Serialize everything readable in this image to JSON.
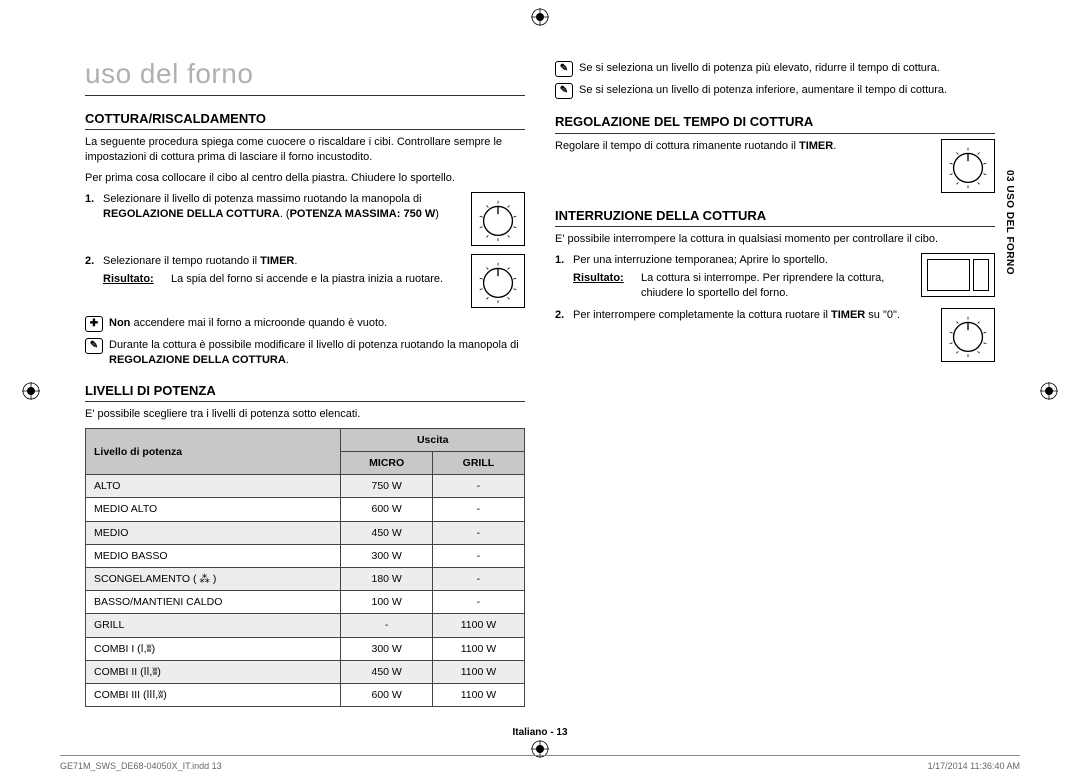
{
  "page": {
    "main_title": "uso del forno",
    "side_tab": "03 USO DEL FORNO",
    "footer_center": "Italiano - 13",
    "footer_left": "GE71M_SWS_DE68-04050X_IT.indd   13",
    "footer_right": "1/17/2014   11:36:40 AM"
  },
  "left": {
    "s1_title": "COTTURA/RISCALDAMENTO",
    "s1_p1": "La seguente procedura spiega come cuocere o riscaldare i cibi. Controllare sempre le impostazioni di cottura prima di lasciare il forno incustodito.",
    "s1_p2": "Per prima cosa collocare il cibo al centro della piastra. Chiudere lo sportello.",
    "s1_step1_a": "Selezionare il livello di potenza massimo ruotando la manopola di ",
    "s1_step1_b": "REGOLAZIONE DELLA COTTURA",
    "s1_step1_c": ". (",
    "s1_step1_d": "POTENZA MASSIMA: 750 W",
    "s1_step1_e": ")",
    "s1_step2_a": "Selezionare il tempo ruotando il ",
    "s1_step2_b": "TIMER",
    "s1_step2_c": ".",
    "s1_result_label": "Risultato:",
    "s1_result_text": "La spia del forno si accende e la piastra inizia a ruotare.",
    "s1_note1_a": "Non",
    "s1_note1_b": " accendere mai il forno a microonde quando è vuoto.",
    "s1_note2_a": "Durante la cottura è possibile modificare il livello di potenza ruotando la manopola di ",
    "s1_note2_b": "REGOLAZIONE DELLA COTTURA",
    "s1_note2_c": ".",
    "s2_title": "LIVELLI DI POTENZA",
    "s2_p1": "E' possibile scegliere tra i livelli di potenza sotto elencati.",
    "tbl": {
      "h1": "Livello di potenza",
      "h2": "Uscita",
      "h2a": "MICRO",
      "h2b": "GRILL",
      "rows": [
        {
          "l": "ALTO",
          "m": "750 W",
          "g": "-"
        },
        {
          "l": "MEDIO ALTO",
          "m": "600 W",
          "g": "-"
        },
        {
          "l": "MEDIO",
          "m": "450 W",
          "g": "-"
        },
        {
          "l": "MEDIO BASSO",
          "m": "300 W",
          "g": "-"
        },
        {
          "l": "SCONGELAMENTO ( ⁂ )",
          "m": "180 W",
          "g": "-"
        },
        {
          "l": "BASSO/MANTIENI CALDO",
          "m": "100 W",
          "g": "-"
        },
        {
          "l": "GRILL",
          "m": "-",
          "g": "1100 W"
        },
        {
          "l": "COMBI I (ⅼ,ʬ)",
          "m": "300 W",
          "g": "1100 W"
        },
        {
          "l": "COMBI II (ⅼⅼ,ʬ)",
          "m": "450 W",
          "g": "1100 W"
        },
        {
          "l": "COMBI III (ⅼⅼⅼ,ʬ)",
          "m": "600 W",
          "g": "1100 W"
        }
      ]
    }
  },
  "right": {
    "note1": "Se si seleziona un livello di potenza più elevato, ridurre il tempo di cottura.",
    "note2": "Se si seleziona un livello di potenza inferiore, aumentare il tempo di cottura.",
    "s3_title": "REGOLAZIONE DEL TEMPO DI COTTURA",
    "s3_p1_a": "Regolare il tempo di cottura rimanente ruotando il ",
    "s3_p1_b": "TIMER",
    "s3_p1_c": ".",
    "s4_title": "INTERRUZIONE DELLA COTTURA",
    "s4_p1": "E' possibile interrompere la cottura in qualsiasi momento per controllare il cibo.",
    "s4_step1": "Per una interruzione temporanea; Aprire lo sportello.",
    "s4_result_label": "Risultato:",
    "s4_result_text": "La cottura si interrompe. Per riprendere la cottura, chiudere lo sportello del forno.",
    "s4_step2_a": "Per interrompere completamente la cottura ruotare il ",
    "s4_step2_b": "TIMER",
    "s4_step2_c": " su \"0\"."
  }
}
